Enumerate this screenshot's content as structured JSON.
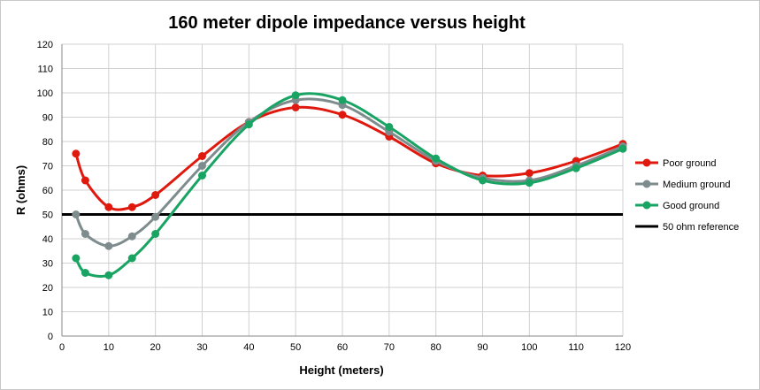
{
  "chart_data": {
    "type": "line",
    "title": "160 meter dipole impedance versus height",
    "xlabel": "Height (meters)",
    "ylabel": "R (ohms)",
    "xlim": [
      0,
      120
    ],
    "ylim": [
      0,
      120
    ],
    "x_ticks": [
      "0",
      "10",
      "20",
      "30",
      "40",
      "50",
      "60",
      "70",
      "80",
      "90",
      "100",
      "110",
      "120"
    ],
    "y_ticks": [
      "0",
      "10",
      "20",
      "30",
      "40",
      "50",
      "60",
      "70",
      "80",
      "90",
      "100",
      "110",
      "120"
    ],
    "grid": true,
    "legend_position": "right",
    "smooth": true,
    "series": [
      {
        "name": "Poor ground",
        "color": "#e0190f",
        "points": [
          [
            3,
            75
          ],
          [
            5,
            64
          ],
          [
            10,
            53
          ],
          [
            15,
            53
          ],
          [
            20,
            58
          ],
          [
            30,
            74
          ],
          [
            40,
            88
          ],
          [
            50,
            94
          ],
          [
            60,
            91
          ],
          [
            70,
            82
          ],
          [
            80,
            71
          ],
          [
            90,
            66
          ],
          [
            100,
            67
          ],
          [
            110,
            72
          ],
          [
            120,
            79
          ]
        ]
      },
      {
        "name": "Medium ground",
        "color": "#7f8c8d",
        "points": [
          [
            3,
            50
          ],
          [
            5,
            42
          ],
          [
            10,
            37
          ],
          [
            15,
            41
          ],
          [
            20,
            49
          ],
          [
            30,
            70
          ],
          [
            40,
            88
          ],
          [
            50,
            97
          ],
          [
            60,
            95
          ],
          [
            70,
            84
          ],
          [
            80,
            72
          ],
          [
            90,
            65
          ],
          [
            100,
            64
          ],
          [
            110,
            70
          ],
          [
            120,
            78
          ]
        ]
      },
      {
        "name": "Good ground",
        "color": "#19a463",
        "points": [
          [
            3,
            32
          ],
          [
            5,
            26
          ],
          [
            10,
            25
          ],
          [
            15,
            32
          ],
          [
            20,
            42
          ],
          [
            30,
            66
          ],
          [
            40,
            87
          ],
          [
            50,
            99
          ],
          [
            60,
            97
          ],
          [
            70,
            86
          ],
          [
            80,
            73
          ],
          [
            90,
            64
          ],
          [
            100,
            63
          ],
          [
            110,
            69
          ],
          [
            120,
            77
          ]
        ]
      }
    ],
    "reference_line": {
      "name": "50 ohm reference",
      "color": "#000000",
      "y": 50,
      "x_range": [
        0,
        120
      ]
    }
  }
}
